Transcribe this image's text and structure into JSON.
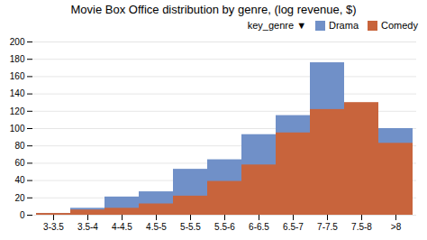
{
  "chart_data": {
    "type": "bar",
    "title": "Movie Box Office distribution by genre, (log revenue, $)",
    "categories": [
      "3-3.5",
      "3.5-4",
      "4-4.5",
      "4.5-5",
      "5-5.5",
      "5.5-6",
      "6-6.5",
      "6.5-7",
      "7-7.5",
      "7.5-8",
      ">8"
    ],
    "series": [
      {
        "name": "Drama",
        "color": "#7090C8",
        "values": [
          2,
          8,
          21,
          27,
          53,
          64,
          93,
          115,
          176,
          125,
          100
        ]
      },
      {
        "name": "Comedy",
        "color": "#C8643C",
        "values": [
          2,
          6,
          8,
          13,
          22,
          39,
          58,
          95,
          122,
          130,
          83
        ]
      }
    ],
    "legend_title": "key_genre   ▼",
    "legend": "upper right",
    "ylim": [
      0,
      200
    ],
    "yticks": [
      0,
      20,
      40,
      60,
      80,
      100,
      120,
      140,
      160,
      180,
      200
    ],
    "grid": true
  }
}
